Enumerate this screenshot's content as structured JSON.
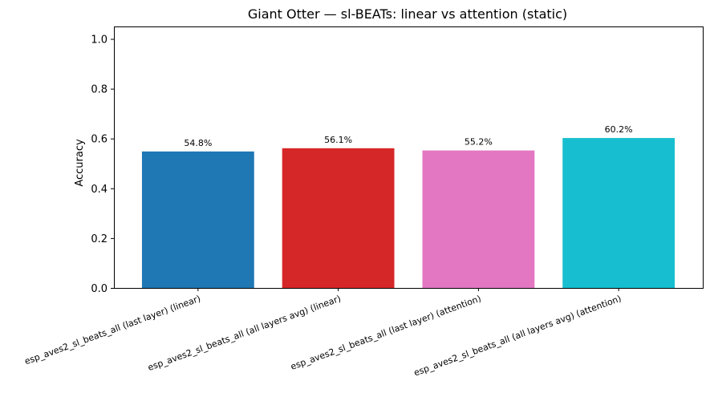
{
  "chart_data": {
    "type": "bar",
    "title": "Giant Otter — sl-BEATs: linear vs attention (static)",
    "xlabel": "",
    "ylabel": "Accuracy",
    "ylim": [
      0,
      1.05
    ],
    "yticks": [
      "0.0",
      "0.2",
      "0.4",
      "0.6",
      "0.8",
      "1.0"
    ],
    "grid": false,
    "categories": [
      "esp_aves2_sl_beats_all (last layer) (linear)",
      "esp_aves2_sl_beats_all (all layers avg) (linear)",
      "esp_aves2_sl_beats_all (last layer) (attention)",
      "esp_aves2_sl_beats_all (all layers avg) (attention)"
    ],
    "values": [
      0.548,
      0.561,
      0.552,
      0.602
    ],
    "value_labels": [
      "54.8%",
      "56.1%",
      "55.2%",
      "60.2%"
    ],
    "colors": [
      "#1f77b4",
      "#d62728",
      "#e377c2",
      "#17becf"
    ]
  }
}
